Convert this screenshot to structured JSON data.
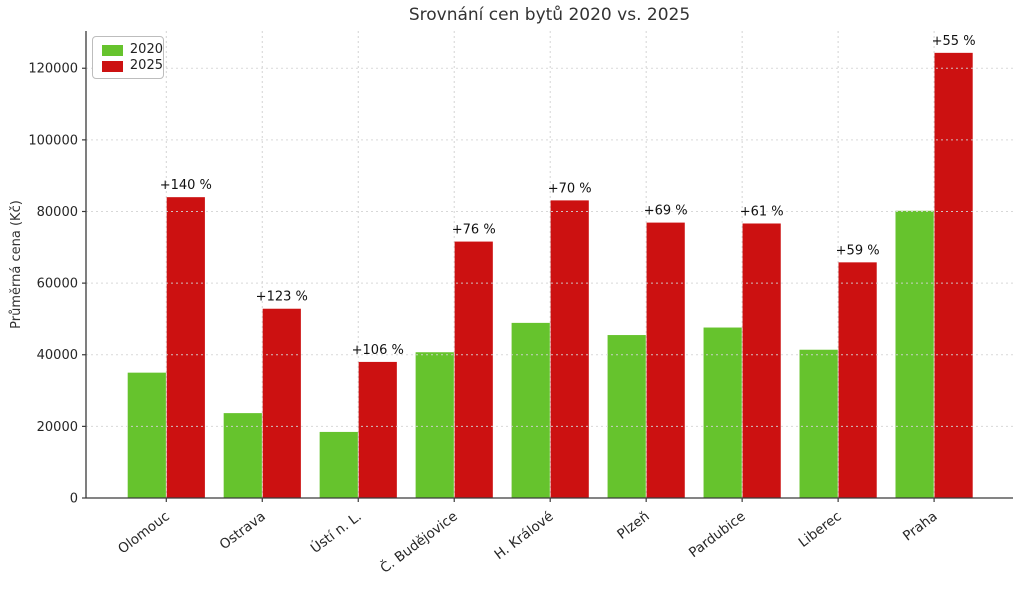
{
  "chart_data": {
    "type": "bar",
    "title": "Srovnání cen bytů 2020 vs. 2025",
    "xlabel": "",
    "ylabel": "Průměrná cena (Kč)",
    "categories": [
      "Olomouc",
      "Ostrava",
      "Ústí n. L.",
      "Č. Budějovice",
      "H. Králové",
      "Plzeň",
      "Pardubice",
      "Liberec",
      "Praha"
    ],
    "series": [
      {
        "name": "2020",
        "color": "#66c32d",
        "values": [
          35000,
          23700,
          18450,
          40700,
          48900,
          45500,
          47600,
          41400,
          80200
        ]
      },
      {
        "name": "2025",
        "color": "#cc1111",
        "values": [
          84000,
          52850,
          38000,
          71600,
          83100,
          76900,
          76650,
          65800,
          124300
        ]
      }
    ],
    "annotations": [
      "+140 %",
      "+123 %",
      "+106 %",
      "+76 %",
      "+70 %",
      "+69 %",
      "+61 %",
      "+59 %",
      "+55 %"
    ],
    "yticks": [
      0,
      20000,
      40000,
      60000,
      80000,
      100000,
      120000
    ],
    "ylim": [
      0,
      130400
    ],
    "grid": true,
    "grid_style": "dashed",
    "legend_position": "upper left",
    "bar_orientation": "vertical",
    "colors": {
      "grid": "#d4d4d4",
      "spine": "#3a3a3a",
      "tick_label": "#262626",
      "annotation": "#111111"
    }
  }
}
